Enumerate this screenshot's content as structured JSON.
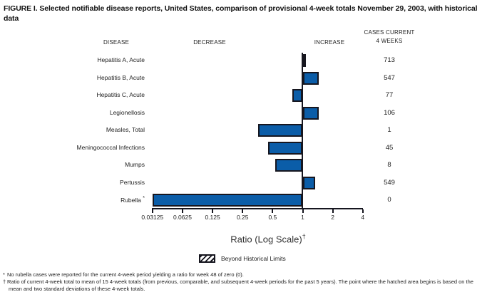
{
  "title": "FIGURE I. Selected notifiable disease reports, United States, comparison of provisional 4-week totals November 29, 2003, with historical data",
  "headers": {
    "disease": "DISEASE",
    "decrease": "DECREASE",
    "increase": "INCREASE",
    "cases_line1": "CASES CURRENT",
    "cases_line2": "4 WEEKS"
  },
  "chart_data": {
    "type": "bar",
    "orientation": "horizontal",
    "x_scale": "log2",
    "xlim": [
      0.03125,
      4
    ],
    "baseline": 1,
    "x_ticks": [
      0.03125,
      0.0625,
      0.125,
      0.25,
      0.5,
      1,
      2,
      4
    ],
    "x_tick_labels": [
      "0.03125",
      "0.0625",
      "0.125",
      "0.25",
      "0.5",
      "1",
      "2",
      "4"
    ],
    "xlabel": "Ratio (Log Scale)",
    "xlabel_sup": "†",
    "rows": [
      {
        "disease": "Hepatitis A, Acute",
        "label_suffix": "",
        "ratio": 1.05,
        "cases": "713"
      },
      {
        "disease": "Hepatitis B, Acute",
        "label_suffix": "",
        "ratio": 1.45,
        "cases": "547"
      },
      {
        "disease": "Hepatitis C, Acute",
        "label_suffix": "",
        "ratio": 0.79,
        "cases": "77"
      },
      {
        "disease": "Legionellosis",
        "label_suffix": "",
        "ratio": 1.44,
        "cases": "106"
      },
      {
        "disease": "Measles, Total",
        "label_suffix": "",
        "ratio": 0.36,
        "cases": "1"
      },
      {
        "disease": "Meningococcal Infections",
        "label_suffix": "",
        "ratio": 0.45,
        "cases": "45"
      },
      {
        "disease": "Mumps",
        "label_suffix": "",
        "ratio": 0.53,
        "cases": "8"
      },
      {
        "disease": "Pertussis",
        "label_suffix": "",
        "ratio": 1.34,
        "cases": "549"
      },
      {
        "disease": "Rubella",
        "label_suffix": "*",
        "ratio": 0,
        "cases": "0"
      }
    ],
    "legend": {
      "label": "Beyond Historical Limits",
      "swatch": "hatched"
    },
    "colors": {
      "bar_fill": "#0b5da8",
      "bar_border": "#16161f",
      "axis": "#16161f"
    }
  },
  "footnotes": [
    {
      "marker": "*",
      "text": "No rubella cases were reported for the current 4-week period yielding a ratio for week 48 of zero (0)."
    },
    {
      "marker": "†",
      "text": "Ratio of current 4-week total to mean of 15 4-week totals (from previous, comparable, and subsequent 4-week periods for the past 5 years). The point where the hatched area begins is based on the mean and two standard deviations of these 4-week totals."
    }
  ]
}
